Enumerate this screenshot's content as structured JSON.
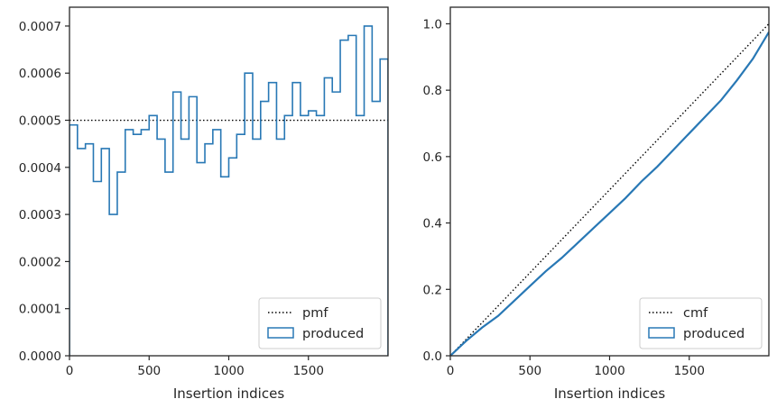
{
  "chart_data": [
    {
      "type": "histogram-step",
      "xlabel": "Insertion indices",
      "ylabel": "",
      "xlim": [
        0,
        2000
      ],
      "ylim": [
        0,
        0.00074
      ],
      "xticks": [
        0,
        500,
        1000,
        1500
      ],
      "yticks": [
        0.0,
        0.0001,
        0.0002,
        0.0003,
        0.0004,
        0.0005,
        0.0006,
        0.0007
      ],
      "xtick_labels": [
        "0",
        "500",
        "1000",
        "1500"
      ],
      "ytick_labels": [
        "0.0000",
        "0.0001",
        "0.0002",
        "0.0003",
        "0.0004",
        "0.0005",
        "0.0006",
        "0.0007"
      ],
      "legend_position": "lower-right",
      "series": [
        {
          "name": "pmf",
          "style": "dotted",
          "color": "#000000",
          "value": 0.0005
        },
        {
          "name": "produced",
          "style": "step",
          "color": "#2878b5",
          "bin_width": 50,
          "values": [
            0.00049,
            0.00044,
            0.00045,
            0.00037,
            0.00044,
            0.0003,
            0.00039,
            0.00048,
            0.00047,
            0.00048,
            0.00051,
            0.00046,
            0.00039,
            0.00056,
            0.00046,
            0.00055,
            0.00041,
            0.00045,
            0.00048,
            0.00038,
            0.00042,
            0.00047,
            0.0006,
            0.00046,
            0.00054,
            0.00058,
            0.00046,
            0.00051,
            0.00058,
            0.00051,
            0.00052,
            0.00051,
            0.00059,
            0.00056,
            0.00067,
            0.00068,
            0.00051,
            0.0007,
            0.00054,
            0.00063
          ]
        }
      ]
    },
    {
      "type": "line",
      "xlabel": "Insertion indices",
      "ylabel": "",
      "xlim": [
        0,
        2000
      ],
      "ylim": [
        0,
        1.05
      ],
      "xticks": [
        0,
        500,
        1000,
        1500
      ],
      "yticks": [
        0.0,
        0.2,
        0.4,
        0.6,
        0.8,
        1.0
      ],
      "xtick_labels": [
        "0",
        "500",
        "1000",
        "1500"
      ],
      "ytick_labels": [
        "0.0",
        "0.2",
        "0.4",
        "0.6",
        "0.8",
        "1.0"
      ],
      "legend_position": "lower-right",
      "series": [
        {
          "name": "cmf",
          "style": "dotted",
          "color": "#000000",
          "x": [
            0,
            2000
          ],
          "y": [
            0,
            1.0
          ]
        },
        {
          "name": "produced",
          "style": "solid",
          "color": "#2878b5",
          "x": [
            0,
            100,
            200,
            300,
            400,
            500,
            600,
            700,
            800,
            900,
            1000,
            1100,
            1200,
            1300,
            1400,
            1500,
            1600,
            1700,
            1800,
            1900,
            2000
          ],
          "y": [
            0,
            0.045,
            0.085,
            0.12,
            0.165,
            0.21,
            0.255,
            0.295,
            0.34,
            0.385,
            0.43,
            0.475,
            0.525,
            0.57,
            0.62,
            0.67,
            0.72,
            0.77,
            0.83,
            0.895,
            0.975
          ]
        }
      ]
    }
  ]
}
